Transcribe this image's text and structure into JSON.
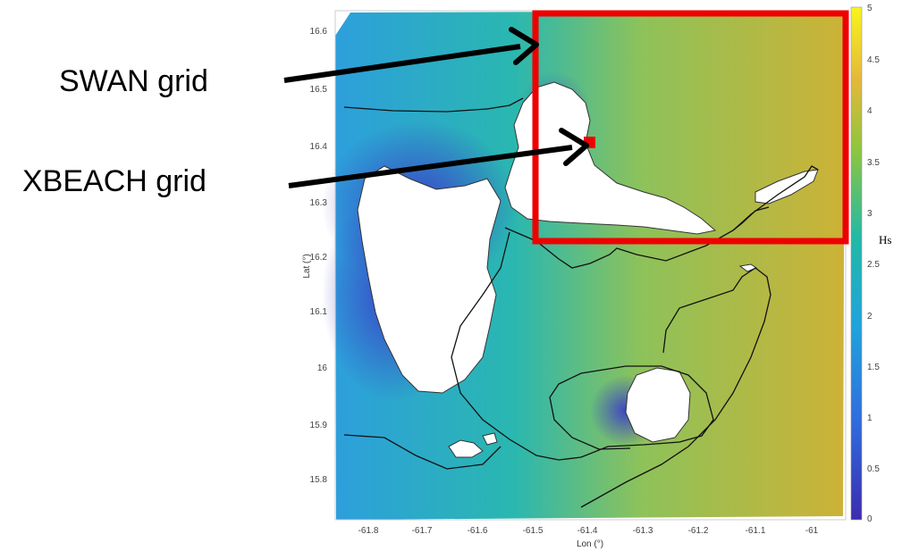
{
  "annotations": {
    "swan_label": "SWAN grid",
    "xbeach_label": "XBEACH grid"
  },
  "axes": {
    "xlabel": "Lon (°)",
    "ylabel": "Lat (°)",
    "xticks": [
      "-61.8",
      "-61.7",
      "-61.6",
      "-61.5",
      "-61.4",
      "-61.3",
      "-61.2",
      "-61.1",
      "-61"
    ],
    "yticks": [
      "16.6",
      "16.5",
      "16.4",
      "16.3",
      "16.2",
      "16.1",
      "16",
      "15.9",
      "15.8"
    ]
  },
  "colorbar": {
    "label": "Hs",
    "ticks": [
      "5",
      "4.5",
      "4",
      "3.5",
      "3",
      "2.5",
      "2",
      "1.5",
      "1",
      "0.5",
      "0"
    ],
    "range": [
      0,
      5
    ],
    "colors": [
      "#3d2bb0",
      "#1f8ee8",
      "#20b7b6",
      "#a8c83a",
      "#f9e822"
    ]
  },
  "colors": {
    "highlight": "#ee0000",
    "land": "#ffffff",
    "contour": "#111111"
  }
}
